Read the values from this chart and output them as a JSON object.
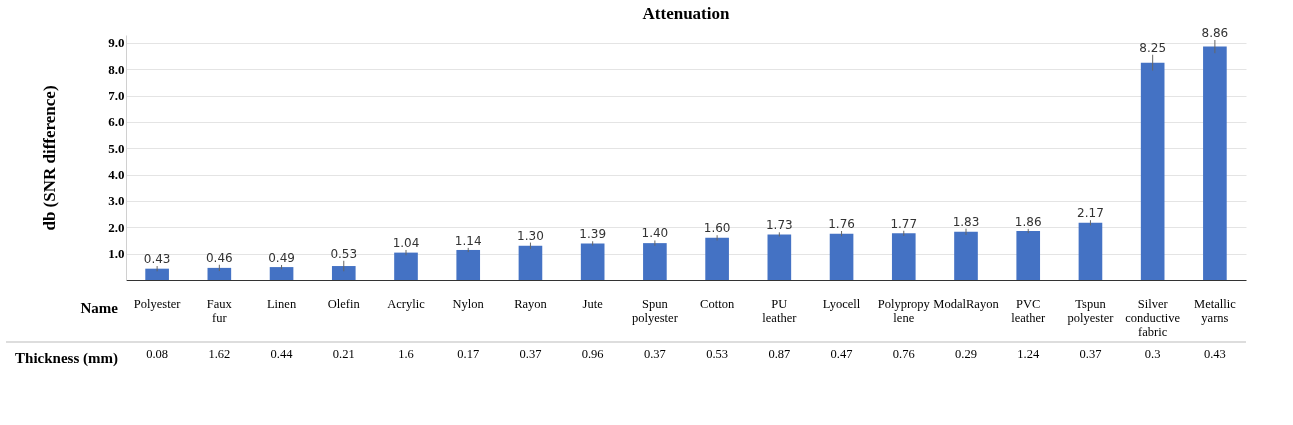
{
  "chart_data": {
    "type": "bar",
    "title": "Attenuation",
    "ylabel": "db (SNR difference)",
    "categories": [
      "Polyester",
      "Faux fur",
      "Linen",
      "Olefin",
      "Acrylic",
      "Nylon",
      "Rayon",
      "Jute",
      "Spun polyester",
      "Cotton",
      "PU leather",
      "Lyocell",
      "Polypropylene",
      "ModalRayon",
      "PVC leather",
      "Tspun polyester",
      "Silver conductive fabric",
      "Metallic yarns"
    ],
    "values": [
      0.43,
      0.46,
      0.49,
      0.53,
      1.04,
      1.14,
      1.3,
      1.39,
      1.4,
      1.6,
      1.73,
      1.76,
      1.77,
      1.83,
      1.86,
      2.17,
      8.25,
      8.86
    ],
    "value_labels": [
      "0.43",
      "0.46",
      "0.49",
      "0.53",
      "1.04",
      "1.14",
      "1.30",
      "1.39",
      "1.40",
      "1.60",
      "1.73",
      "1.76",
      "1.77",
      "1.83",
      "1.86",
      "2.17",
      "8.25",
      "8.86"
    ],
    "errors": [
      0.1,
      0.12,
      0.08,
      0.2,
      0.1,
      0.08,
      0.12,
      0.08,
      0.1,
      0.1,
      0.08,
      0.1,
      0.1,
      0.12,
      0.08,
      0.1,
      0.3,
      0.25
    ],
    "color": "#4472c4",
    "ylim": [
      0,
      9.3
    ],
    "yticks": [
      {
        "value": 1,
        "label": "1.0"
      },
      {
        "value": 2,
        "label": "2.0"
      },
      {
        "value": 3,
        "label": "3.0"
      },
      {
        "value": 4,
        "label": "4.0"
      },
      {
        "value": 5,
        "label": "5.0"
      },
      {
        "value": 6,
        "label": "6.0"
      },
      {
        "value": 7,
        "label": "7.0"
      },
      {
        "value": 8,
        "label": "8.0"
      },
      {
        "value": 9,
        "label": "9.0"
      }
    ],
    "grid": "y",
    "annotations": [
      "Name",
      "Thickness (mm)",
      "0.08",
      "1.62",
      "0.44",
      "0.21",
      "1.6",
      "0.17",
      "0.37",
      "0.96",
      "0.37",
      "0.53",
      "0.87",
      "0.47",
      "0.76",
      "0.29",
      "1.24",
      "0.37",
      "0.3",
      "0.43"
    ]
  }
}
